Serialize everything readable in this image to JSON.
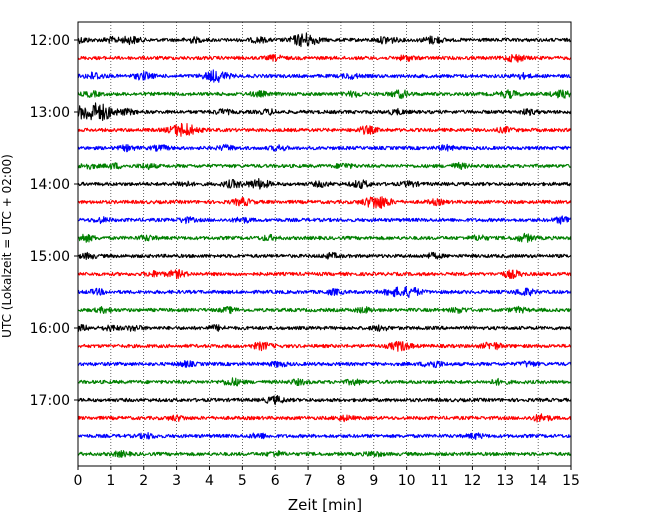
{
  "chart_data": {
    "type": "line",
    "title": "",
    "xlabel": "Zeit  [min]",
    "ylabel": "UTC (Lokalzeit = UTC + 02:00)",
    "xlim": [
      0,
      15
    ],
    "x_ticks": [
      "0",
      "1",
      "2",
      "3",
      "4",
      "5",
      "6",
      "7",
      "8",
      "9",
      "10",
      "11",
      "12",
      "13",
      "14",
      "15"
    ],
    "y_ticks": [
      {
        "label": "12:00",
        "trace": 0
      },
      {
        "label": "13:00",
        "trace": 4
      },
      {
        "label": "14:00",
        "trace": 8
      },
      {
        "label": "15:00",
        "trace": 12
      },
      {
        "label": "16:00",
        "trace": 16
      },
      {
        "label": "17:00",
        "trace": 20
      }
    ],
    "grid": "vertical dotted",
    "trace_interval_minutes": 15,
    "trace_colors": [
      "#000000",
      "#ff0000",
      "#0000ff",
      "#008000"
    ],
    "series": [
      {
        "start": "12:00",
        "color": "#000000",
        "events": [
          [
            0.1,
            2
          ],
          [
            1.0,
            2
          ],
          [
            1.6,
            3
          ],
          [
            3.5,
            2
          ],
          [
            5.5,
            2
          ],
          [
            6.9,
            6
          ],
          [
            9.4,
            3
          ],
          [
            10.8,
            3
          ]
        ]
      },
      {
        "start": "12:15",
        "color": "#ff0000",
        "events": [
          [
            6.0,
            2
          ],
          [
            10.0,
            2
          ],
          [
            13.3,
            3
          ]
        ]
      },
      {
        "start": "12:30",
        "color": "#0000ff",
        "events": [
          [
            0.5,
            3
          ],
          [
            2.0,
            3
          ],
          [
            4.2,
            5
          ],
          [
            8.3,
            2
          ],
          [
            13.5,
            2
          ]
        ]
      },
      {
        "start": "12:45",
        "color": "#008000",
        "events": [
          [
            0.4,
            2
          ],
          [
            5.5,
            2
          ],
          [
            8.4,
            2
          ],
          [
            9.8,
            3
          ],
          [
            13.1,
            3
          ],
          [
            14.7,
            3
          ]
        ]
      },
      {
        "start": "13:00",
        "color": "#000000",
        "events": [
          [
            0.3,
            7
          ],
          [
            0.8,
            5
          ],
          [
            1.5,
            2
          ],
          [
            4.4,
            2
          ],
          [
            5.8,
            2
          ],
          [
            9.7,
            2
          ],
          [
            13.7,
            2
          ]
        ]
      },
      {
        "start": "13:15",
        "color": "#ff0000",
        "events": [
          [
            3.2,
            6
          ],
          [
            8.8,
            3
          ],
          [
            13.0,
            2
          ]
        ]
      },
      {
        "start": "13:30",
        "color": "#0000ff",
        "events": [
          [
            1.5,
            2
          ],
          [
            2.5,
            2
          ],
          [
            4.5,
            2
          ],
          [
            6.1,
            2
          ],
          [
            11.2,
            2
          ]
        ]
      },
      {
        "start": "13:45",
        "color": "#008000",
        "events": [
          [
            0.3,
            2
          ],
          [
            1.1,
            2
          ],
          [
            2.1,
            2
          ],
          [
            8.1,
            2
          ],
          [
            11.6,
            2
          ]
        ]
      },
      {
        "start": "14:00",
        "color": "#000000",
        "events": [
          [
            3.2,
            2
          ],
          [
            4.7,
            3
          ],
          [
            5.5,
            4
          ],
          [
            7.4,
            2
          ],
          [
            8.6,
            3
          ],
          [
            10.1,
            2
          ]
        ]
      },
      {
        "start": "14:15",
        "color": "#ff0000",
        "events": [
          [
            5.0,
            3
          ],
          [
            9.1,
            6
          ],
          [
            10.9,
            2
          ]
        ]
      },
      {
        "start": "14:30",
        "color": "#0000ff",
        "events": [
          [
            0.7,
            2
          ],
          [
            3.3,
            2
          ],
          [
            5.0,
            2
          ],
          [
            14.8,
            3
          ]
        ]
      },
      {
        "start": "14:45",
        "color": "#008000",
        "events": [
          [
            0.2,
            3
          ],
          [
            2.1,
            2
          ],
          [
            5.8,
            2
          ],
          [
            12.2,
            2
          ],
          [
            13.6,
            3
          ]
        ]
      },
      {
        "start": "15:00",
        "color": "#000000",
        "events": [
          [
            0.3,
            2
          ],
          [
            7.7,
            2
          ],
          [
            10.8,
            2
          ]
        ]
      },
      {
        "start": "15:15",
        "color": "#ff0000",
        "events": [
          [
            2.3,
            2
          ],
          [
            3.0,
            3
          ],
          [
            13.2,
            3
          ]
        ]
      },
      {
        "start": "15:30",
        "color": "#0000ff",
        "events": [
          [
            0.6,
            2
          ],
          [
            7.8,
            2
          ],
          [
            9.6,
            3
          ],
          [
            10.1,
            4
          ],
          [
            13.6,
            3
          ]
        ]
      },
      {
        "start": "15:45",
        "color": "#008000",
        "events": [
          [
            0.8,
            2
          ],
          [
            4.6,
            2
          ],
          [
            8.7,
            2
          ],
          [
            11.6,
            2
          ],
          [
            13.4,
            2
          ]
        ]
      },
      {
        "start": "16:00",
        "color": "#000000",
        "events": [
          [
            0.1,
            2
          ],
          [
            1.0,
            2
          ],
          [
            1.7,
            2
          ],
          [
            4.2,
            2
          ],
          [
            9.2,
            2
          ]
        ]
      },
      {
        "start": "16:15",
        "color": "#ff0000",
        "events": [
          [
            5.6,
            3
          ],
          [
            9.8,
            4
          ],
          [
            12.6,
            3
          ]
        ]
      },
      {
        "start": "16:30",
        "color": "#0000ff",
        "events": [
          [
            3.3,
            2
          ],
          [
            6.1,
            2
          ],
          [
            10.8,
            3
          ],
          [
            13.7,
            2
          ]
        ]
      },
      {
        "start": "16:45",
        "color": "#008000",
        "events": [
          [
            4.7,
            3
          ],
          [
            6.7,
            2
          ],
          [
            8.4,
            2
          ],
          [
            12.8,
            2
          ]
        ]
      },
      {
        "start": "17:00",
        "color": "#000000",
        "events": [
          [
            6.0,
            3
          ]
        ]
      },
      {
        "start": "17:15",
        "color": "#ff0000",
        "events": [
          [
            3.0,
            2
          ],
          [
            8.1,
            2
          ],
          [
            14.1,
            3
          ]
        ]
      },
      {
        "start": "17:30",
        "color": "#0000ff",
        "events": [
          [
            2.1,
            2
          ],
          [
            5.5,
            2
          ],
          [
            12.1,
            2
          ]
        ]
      },
      {
        "start": "17:45",
        "color": "#008000",
        "events": [
          [
            1.3,
            2
          ],
          [
            6.0,
            2
          ],
          [
            9.0,
            2
          ]
        ]
      }
    ]
  }
}
